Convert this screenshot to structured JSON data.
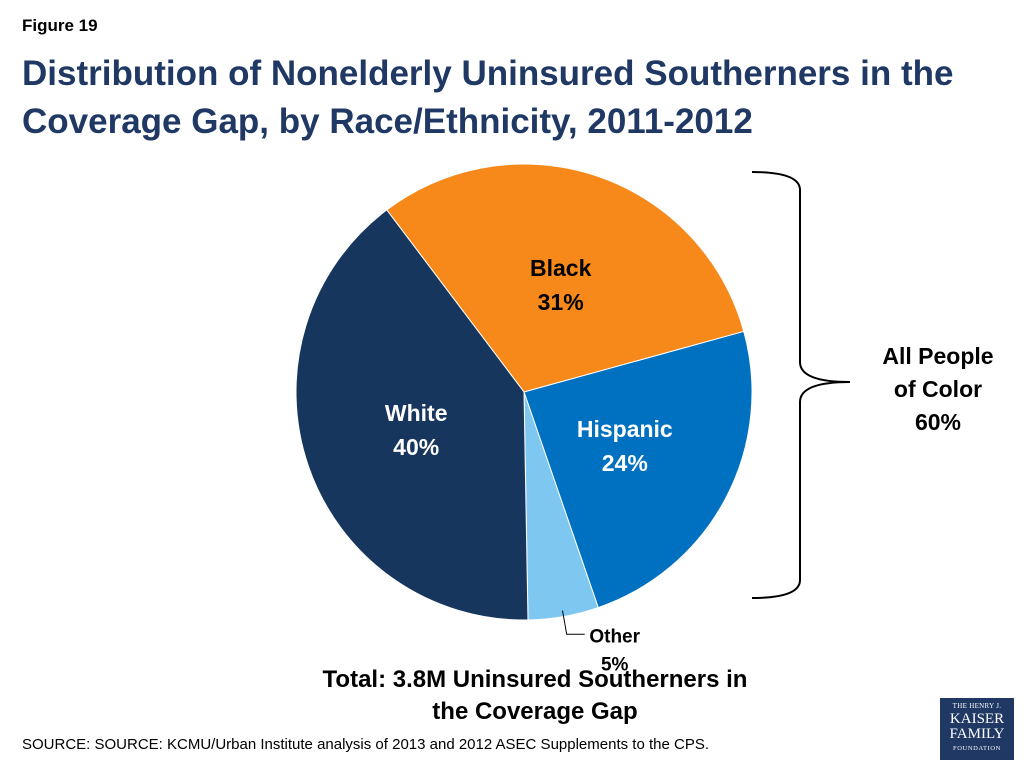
{
  "figure_label": "Figure 19",
  "total": {
    "line1": "Total: 3.8M Uninsured Southerners in",
    "line2": "the Coverage Gap"
  },
  "source": "SOURCE: SOURCE: KCMU/Urban Institute analysis of 2013 and 2012 ASEC Supplements to the CPS.",
  "logo": {
    "line1": "THE HENRY J.",
    "line2": "KAISER",
    "line3": "FAMILY",
    "line4": "FOUNDATION"
  },
  "bracket": {
    "line1": "All People",
    "line2": "of Color",
    "line3": "60%"
  },
  "chart_data": {
    "type": "pie",
    "title_line1": "Distribution of Nonelderly Uninsured Southerners  in the",
    "title_line2": "Coverage Gap, by Race/Ethnicity, 2011-2012",
    "start_angle_deg": -37,
    "slices": [
      {
        "label": "Black",
        "value": 31,
        "display": "31%",
        "color": "#f7891a",
        "label_color": "#000000"
      },
      {
        "label": "Hispanic",
        "value": 24,
        "display": "24%",
        "color": "#0070c0",
        "label_color": "#ffffff"
      },
      {
        "label": "Other",
        "value": 5,
        "display": "5%",
        "color": "#7ec7f0",
        "label_color": "#000000"
      },
      {
        "label": "White",
        "value": 40,
        "display": "40%",
        "color": "#17365d",
        "label_color": "#ffffff"
      }
    ]
  }
}
